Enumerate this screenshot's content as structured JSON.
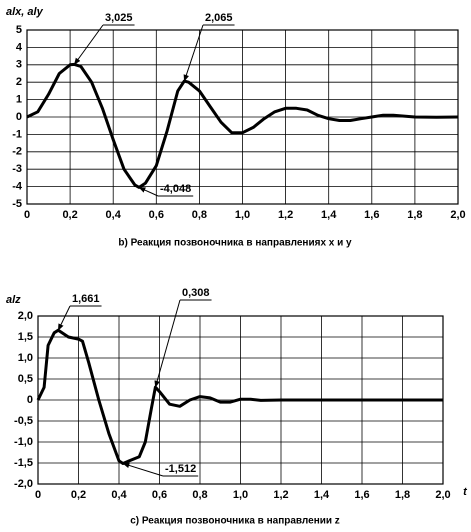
{
  "chart_data": [
    {
      "type": "line",
      "y_label": "alx, aly",
      "caption": "b) Реакция позвоночника в направлениях x и y",
      "color": "#000000",
      "grid": true,
      "x": [
        0,
        0.05,
        0.1,
        0.15,
        0.2,
        0.22,
        0.25,
        0.3,
        0.35,
        0.4,
        0.45,
        0.5,
        0.52,
        0.55,
        0.6,
        0.65,
        0.7,
        0.73,
        0.75,
        0.8,
        0.85,
        0.9,
        0.95,
        1.0,
        1.05,
        1.1,
        1.15,
        1.2,
        1.25,
        1.3,
        1.35,
        1.4,
        1.45,
        1.5,
        1.55,
        1.6,
        1.65,
        1.7,
        1.75,
        1.8,
        1.9,
        2.0
      ],
      "values": [
        0,
        0.3,
        1.3,
        2.5,
        3.0,
        3.025,
        2.9,
        2.0,
        0.5,
        -1.3,
        -3.0,
        -3.9,
        -4.048,
        -3.8,
        -2.8,
        -0.8,
        1.5,
        2.065,
        2.0,
        1.5,
        0.6,
        -0.3,
        -0.9,
        -0.9,
        -0.6,
        -0.1,
        0.3,
        0.5,
        0.5,
        0.4,
        0.1,
        -0.1,
        -0.2,
        -0.2,
        -0.1,
        0,
        0.1,
        0.1,
        0.05,
        0,
        -0.02,
        0
      ],
      "xlim": [
        0,
        2.0
      ],
      "ylim": [
        -5,
        5
      ],
      "xticks": [
        0,
        {
          "value": 0.2,
          "label": "0,2"
        },
        {
          "value": 0.4,
          "label": "0,4"
        },
        {
          "value": 0.6,
          "label": "0,6"
        },
        {
          "value": 0.8,
          "label": "0,8"
        },
        {
          "value": 1.0,
          "label": "1,0"
        },
        {
          "value": 1.2,
          "label": "1,2"
        },
        {
          "value": 1.4,
          "label": "1,4"
        },
        {
          "value": 1.6,
          "label": "1,6"
        },
        {
          "value": 1.8,
          "label": "1,8"
        },
        {
          "value": 2.0,
          "label": "2,0"
        }
      ],
      "yticks": [
        -5,
        -4,
        -3,
        -2,
        -1,
        0,
        1,
        2,
        3,
        4,
        5
      ],
      "annotations": [
        {
          "x": 0.22,
          "value": 3.025,
          "label": "3,025"
        },
        {
          "x": 0.73,
          "value": 2.065,
          "label": "2,065"
        },
        {
          "x": 0.52,
          "value": -4.048,
          "label": "-4,048"
        }
      ]
    },
    {
      "type": "line",
      "y_label": "alz",
      "x_label": "t",
      "caption": "c) Реакция позвоночника в направлении z",
      "color": "#000000",
      "grid": true,
      "x": [
        0,
        0.03,
        0.05,
        0.08,
        0.1,
        0.15,
        0.2,
        0.22,
        0.25,
        0.3,
        0.35,
        0.4,
        0.42,
        0.45,
        0.5,
        0.53,
        0.56,
        0.58,
        0.6,
        0.65,
        0.7,
        0.75,
        0.8,
        0.85,
        0.9,
        0.95,
        1.0,
        1.05,
        1.1,
        1.2,
        2.0
      ],
      "values": [
        0,
        0.3,
        1.3,
        1.6,
        1.661,
        1.5,
        1.45,
        1.4,
        0.9,
        0,
        -0.8,
        -1.45,
        -1.512,
        -1.45,
        -1.35,
        -1.0,
        -0.2,
        0.308,
        0.2,
        -0.1,
        -0.15,
        0,
        0.08,
        0.05,
        -0.05,
        -0.05,
        0.02,
        0.02,
        -0.01,
        0,
        0
      ],
      "xlim": [
        0,
        2.0
      ],
      "ylim": [
        -2.0,
        2.0
      ],
      "xticks": [
        0,
        {
          "value": 0.2,
          "label": "0,2"
        },
        {
          "value": 0.4,
          "label": "0,4"
        },
        {
          "value": 0.6,
          "label": "0,6"
        },
        {
          "value": 0.8,
          "label": "0,8"
        },
        {
          "value": 1.0,
          "label": "1,0"
        },
        {
          "value": 1.2,
          "label": "1,2"
        },
        {
          "value": 1.4,
          "label": "1,4"
        },
        {
          "value": 1.6,
          "label": "1,6"
        },
        {
          "value": 1.8,
          "label": "1,8"
        },
        {
          "value": 2.0,
          "label": "2,0"
        }
      ],
      "yticks": [
        {
          "value": -2.0,
          "label": "-2,0"
        },
        {
          "value": -1.5,
          "label": "-1,5"
        },
        {
          "value": -1.0,
          "label": "-1,0"
        },
        {
          "value": -0.5,
          "label": "-0,5"
        },
        0,
        {
          "value": 0.5,
          "label": "0,5"
        },
        {
          "value": 1.0,
          "label": "1,0"
        },
        {
          "value": 1.5,
          "label": "1,5"
        },
        {
          "value": 2.0,
          "label": "2,0"
        }
      ],
      "annotations": [
        {
          "x": 0.1,
          "value": 1.661,
          "label": "1,661"
        },
        {
          "x": 0.58,
          "value": 0.308,
          "label": "0,308"
        },
        {
          "x": 0.42,
          "value": -1.512,
          "label": "-1,512"
        }
      ]
    }
  ]
}
